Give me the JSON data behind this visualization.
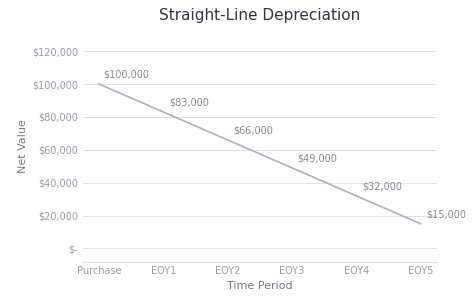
{
  "title": "Straight-Line Depreciation",
  "xlabel": "Time Period",
  "ylabel": "Net Value",
  "categories": [
    "Purchase",
    "EOY1",
    "EOY2",
    "EOY3",
    "EOY4",
    "EOY5"
  ],
  "values": [
    100000,
    83000,
    66000,
    49000,
    32000,
    15000
  ],
  "annotations": [
    "$100,000",
    "$83,000",
    "$66,000",
    "$49,000",
    "$32,000",
    "$15,000"
  ],
  "line_color": "#b0afc0",
  "annotation_color": "#8888a0",
  "yticks": [
    0,
    20000,
    40000,
    60000,
    80000,
    100000,
    120000
  ],
  "ytick_labels": [
    "$-",
    "$20,000",
    "$40,000",
    "$60,000",
    "$80,000",
    "$100,000",
    "$120,000"
  ],
  "ylim": [
    -8000,
    132000
  ],
  "background_color": "#ffffff",
  "grid_color": "#e0e0e8",
  "title_fontsize": 11,
  "axis_label_fontsize": 8,
  "tick_fontsize": 7,
  "annotation_fontsize": 7,
  "tick_color": "#999aaa",
  "label_color": "#777788"
}
